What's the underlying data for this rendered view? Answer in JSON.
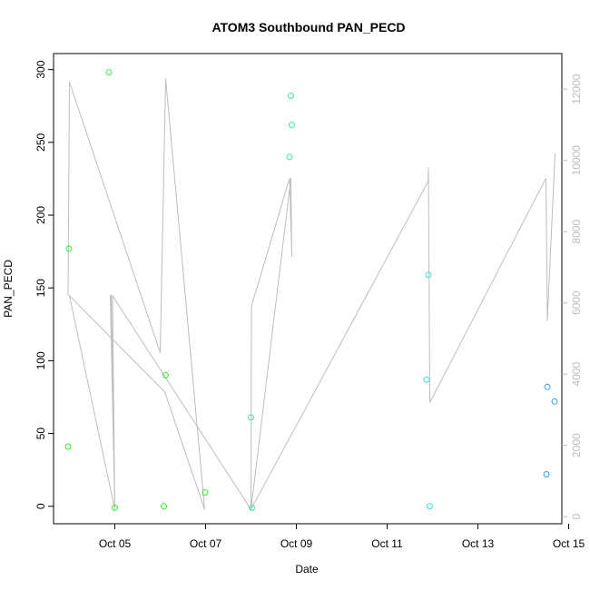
{
  "chart_data": {
    "type": "scatter",
    "title": "ATOM3 Southbound PAN_PECD",
    "xlabel": "Date",
    "ylabel": "PAN_PECD",
    "x_ticks": [
      "Oct 05",
      "Oct 07",
      "Oct 09",
      "Oct 11",
      "Oct 13",
      "Oct 15"
    ],
    "y_ticks": [
      "0",
      "50",
      "100",
      "150",
      "200",
      "250",
      "300"
    ],
    "y2_ticks": [
      "0",
      "2000",
      "4000",
      "6000",
      "8000",
      "10000",
      "12000"
    ],
    "xlim": [
      3.65,
      14.85
    ],
    "ylim": [
      -12,
      311
    ],
    "y2lim": [
      -200,
      13000
    ],
    "colors": {
      "axis": "#000000",
      "y2axis": "#bebebe",
      "line": "#bebebe"
    },
    "points": [
      {
        "x": 3.97,
        "y": 41,
        "color": "#33ee33"
      },
      {
        "x": 3.99,
        "y": 177,
        "color": "#33ee33"
      },
      {
        "x": 4.87,
        "y": 298,
        "color": "#33ee33"
      },
      {
        "x": 5.0,
        "y": -1,
        "color": "#33ee33"
      },
      {
        "x": 6.08,
        "y": 0,
        "color": "#33ee33"
      },
      {
        "x": 6.12,
        "y": 90,
        "color": "#33ee33"
      },
      {
        "x": 6.99,
        "y": 9.5,
        "color": "#33ee33"
      },
      {
        "x": 8.0,
        "y": 61,
        "color": "#33eeaa"
      },
      {
        "x": 8.02,
        "y": -1,
        "color": "#33eeaa"
      },
      {
        "x": 8.85,
        "y": 240,
        "color": "#33eeaa"
      },
      {
        "x": 8.88,
        "y": 282,
        "color": "#33eeaa"
      },
      {
        "x": 8.9,
        "y": 262,
        "color": "#33eeaa"
      },
      {
        "x": 11.87,
        "y": 87,
        "color": "#33dddd"
      },
      {
        "x": 11.91,
        "y": 159,
        "color": "#33dddd"
      },
      {
        "x": 11.94,
        "y": 0,
        "color": "#33dddd"
      },
      {
        "x": 14.51,
        "y": 22,
        "color": "#3399ee"
      },
      {
        "x": 14.53,
        "y": 82,
        "color": "#3399ee"
      },
      {
        "x": 14.69,
        "y": 72,
        "color": "#3399ee"
      }
    ],
    "secondary_line": [
      {
        "x": 3.97,
        "y": 6200
      },
      {
        "x": 4.0,
        "y": 12200
      },
      {
        "x": 6.0,
        "y": 4600
      },
      {
        "x": 6.12,
        "y": 12300
      },
      {
        "x": 6.98,
        "y": 200
      },
      {
        "x": 6.1,
        "y": 3500
      },
      {
        "x": 4.0,
        "y": 6200
      },
      {
        "x": 5.0,
        "y": 200
      },
      {
        "x": 4.9,
        "y": 6200
      },
      {
        "x": 4.92,
        "y": 6200
      },
      {
        "x": 5.0,
        "y": 200
      },
      {
        "x": 4.95,
        "y": 6200
      },
      {
        "x": 8.0,
        "y": 200
      },
      {
        "x": 8.01,
        "y": 5900
      },
      {
        "x": 8.85,
        "y": 9500
      },
      {
        "x": 8.9,
        "y": 7300
      },
      {
        "x": 8.88,
        "y": 9500
      },
      {
        "x": 8.0,
        "y": 200
      },
      {
        "x": 11.9,
        "y": 9400
      },
      {
        "x": 11.91,
        "y": 9800
      },
      {
        "x": 11.94,
        "y": 3200
      },
      {
        "x": 14.5,
        "y": 9500
      },
      {
        "x": 14.53,
        "y": 5500
      },
      {
        "x": 14.7,
        "y": 10200
      }
    ]
  }
}
